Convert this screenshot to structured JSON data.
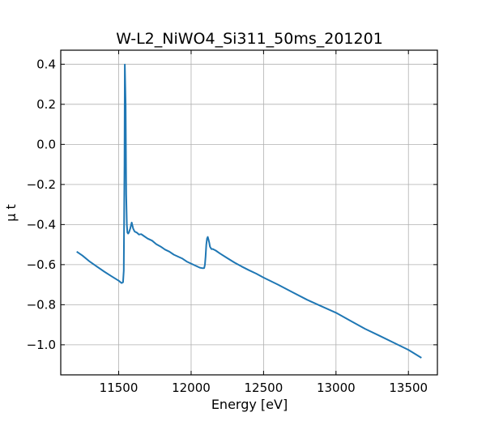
{
  "chart_data": {
    "type": "line",
    "title": "W-L2_NiWO4_Si311_50ms_201201",
    "xlabel": "Energy [eV]",
    "ylabel": "μ t",
    "xlim": [
      11100,
      13700
    ],
    "ylim": [
      -1.15,
      0.47
    ],
    "xticks": [
      11500,
      12000,
      12500,
      13000,
      13500
    ],
    "xtick_labels": [
      "11500",
      "12000",
      "12500",
      "13000",
      "13500"
    ],
    "yticks": [
      0.4,
      0.2,
      0.0,
      -0.2,
      -0.4,
      -0.6,
      -0.8,
      -1.0
    ],
    "ytick_labels": [
      "0.4",
      "0.2",
      "0.0",
      "−0.2",
      "−0.4",
      "−0.6",
      "−0.8",
      "−1.0"
    ],
    "grid": true,
    "series": [
      {
        "color": "#1f77b4",
        "x": [
          11210,
          11250,
          11300,
          11350,
          11400,
          11450,
          11500,
          11520,
          11530,
          11535,
          11540,
          11542,
          11548,
          11552,
          11556,
          11560,
          11565,
          11570,
          11580,
          11590,
          11595,
          11600,
          11610,
          11625,
          11640,
          11655,
          11670,
          11700,
          11730,
          11760,
          11790,
          11820,
          11850,
          11880,
          11910,
          11940,
          11970,
          12000,
          12030,
          12060,
          12080,
          12090,
          12095,
          12100,
          12105,
          12110,
          12115,
          12120,
          12125,
          12130,
          12140,
          12150,
          12170,
          12200,
          12250,
          12300,
          12350,
          12400,
          12450,
          12500,
          12600,
          12700,
          12800,
          12900,
          13000,
          13100,
          13200,
          13300,
          13400,
          13500,
          13590
        ],
        "y": [
          -0.535,
          -0.555,
          -0.585,
          -0.61,
          -0.635,
          -0.658,
          -0.68,
          -0.692,
          -0.688,
          -0.63,
          -0.1,
          0.398,
          0.2,
          -0.25,
          -0.4,
          -0.44,
          -0.445,
          -0.44,
          -0.42,
          -0.39,
          -0.405,
          -0.42,
          -0.435,
          -0.44,
          -0.45,
          -0.448,
          -0.455,
          -0.47,
          -0.48,
          -0.498,
          -0.51,
          -0.525,
          -0.535,
          -0.55,
          -0.56,
          -0.57,
          -0.585,
          -0.595,
          -0.605,
          -0.615,
          -0.618,
          -0.617,
          -0.6,
          -0.56,
          -0.5,
          -0.47,
          -0.462,
          -0.475,
          -0.49,
          -0.51,
          -0.522,
          -0.522,
          -0.53,
          -0.545,
          -0.568,
          -0.59,
          -0.61,
          -0.628,
          -0.645,
          -0.665,
          -0.7,
          -0.738,
          -0.775,
          -0.808,
          -0.84,
          -0.88,
          -0.92,
          -0.955,
          -0.99,
          -1.025,
          -1.065
        ]
      }
    ]
  }
}
